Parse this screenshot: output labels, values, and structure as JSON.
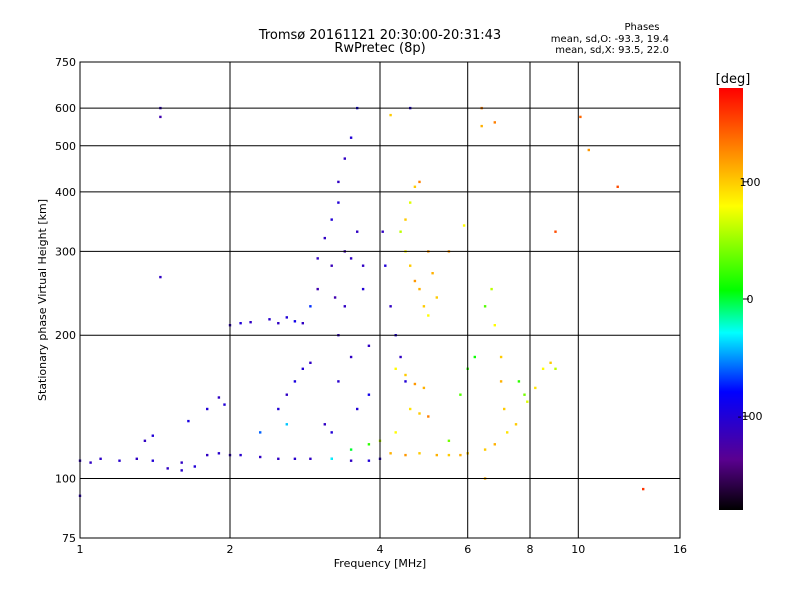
{
  "chart_data": {
    "type": "scatter",
    "title": "Tromsø 20161121 20:30:00-20:31:43",
    "subtitle": "RwPretec (8p)",
    "xlabel": "Frequency [MHz]",
    "ylabel": "Stationary phase Virtual Height [km]",
    "x_scale": "log",
    "y_scale": "log",
    "xlim": [
      1,
      16
    ],
    "ylim": [
      75,
      750
    ],
    "x_ticks": [
      1,
      2,
      4,
      6,
      8,
      10,
      16
    ],
    "x_tick_labels": [
      "1",
      "2",
      "4",
      "6",
      "8",
      "10",
      "16"
    ],
    "y_ticks": [
      75,
      100,
      200,
      300,
      400,
      500,
      600,
      750
    ],
    "y_tick_labels": [
      "75",
      "100",
      "200",
      "300",
      "400",
      "500",
      "600",
      "750"
    ],
    "grid": true,
    "stats": {
      "header": "Phases",
      "line1": "mean, sd,O: -93.3, 19.4",
      "line2": "mean, sd,X:  93.5, 22.0"
    },
    "colorbar": {
      "label": "[deg]",
      "range": [
        -180,
        180
      ],
      "ticks": [
        100,
        0,
        -100
      ],
      "tick_labels": [
        "100",
        "0",
        "-100"
      ],
      "colormap": "rainbow (black-purple-blue-cyan-green-yellow-orange-red)"
    },
    "series": [
      {
        "points": [
          [
            1.0,
            109,
            -110
          ],
          [
            1.05,
            108,
            -110
          ],
          [
            1.1,
            110,
            -108
          ],
          [
            1.2,
            109,
            -105
          ],
          [
            1.3,
            110,
            -110
          ],
          [
            1.4,
            109,
            -100
          ],
          [
            1.0,
            92,
            -110
          ],
          [
            1.45,
            575,
            -120
          ],
          [
            1.45,
            600,
            -110
          ],
          [
            1.45,
            265,
            -110
          ],
          [
            1.5,
            105,
            -110
          ],
          [
            1.6,
            104,
            -105
          ],
          [
            1.7,
            106,
            -100
          ],
          [
            1.8,
            112,
            -110
          ],
          [
            1.9,
            113,
            -105
          ],
          [
            1.6,
            108,
            -110
          ],
          [
            1.4,
            123,
            -100
          ],
          [
            1.35,
            120,
            -110
          ],
          [
            1.65,
            132,
            -95
          ],
          [
            1.8,
            140,
            -100
          ],
          [
            1.9,
            148,
            -110
          ],
          [
            1.95,
            143,
            -100
          ],
          [
            2.0,
            112,
            -110
          ],
          [
            2.1,
            112,
            -105
          ],
          [
            2.3,
            111,
            -110
          ],
          [
            2.5,
            110,
            -110
          ],
          [
            2.7,
            110,
            -105
          ],
          [
            2.9,
            110,
            -110
          ],
          [
            3.2,
            110,
            -110
          ],
          [
            3.5,
            109,
            -110
          ],
          [
            3.8,
            109,
            -100
          ],
          [
            4.0,
            110,
            -105
          ],
          [
            2.0,
            210,
            -110
          ],
          [
            2.1,
            212,
            -100
          ],
          [
            2.2,
            213,
            -110
          ],
          [
            2.4,
            216,
            -105
          ],
          [
            2.5,
            212,
            -110
          ],
          [
            2.6,
            218,
            -100
          ],
          [
            2.7,
            214,
            -90
          ],
          [
            2.8,
            212,
            -110
          ],
          [
            2.5,
            140,
            -100
          ],
          [
            2.6,
            150,
            -110
          ],
          [
            2.7,
            160,
            -95
          ],
          [
            2.8,
            170,
            -100
          ],
          [
            2.9,
            175,
            -110
          ],
          [
            3.0,
            290,
            -110
          ],
          [
            3.0,
            250,
            -120
          ],
          [
            3.1,
            320,
            -110
          ],
          [
            3.2,
            350,
            -100
          ],
          [
            3.2,
            280,
            -115
          ],
          [
            3.25,
            240,
            -120
          ],
          [
            3.3,
            420,
            -110
          ],
          [
            3.3,
            380,
            -100
          ],
          [
            3.3,
            200,
            -110
          ],
          [
            3.3,
            160,
            -105
          ],
          [
            3.4,
            470,
            -110
          ],
          [
            3.4,
            300,
            -120
          ],
          [
            3.4,
            230,
            -110
          ],
          [
            3.5,
            520,
            -100
          ],
          [
            3.5,
            290,
            -110
          ],
          [
            3.5,
            180,
            -110
          ],
          [
            3.6,
            600,
            -90
          ],
          [
            3.6,
            330,
            -110
          ],
          [
            3.6,
            140,
            -100
          ],
          [
            3.7,
            280,
            -110
          ],
          [
            3.7,
            250,
            -100
          ],
          [
            3.8,
            190,
            -110
          ],
          [
            3.8,
            150,
            -90
          ],
          [
            3.1,
            130,
            -110
          ],
          [
            3.2,
            125,
            -100
          ],
          [
            2.9,
            230,
            -70
          ],
          [
            2.3,
            125,
            -60
          ],
          [
            2.6,
            130,
            -40
          ],
          [
            4.05,
            330,
            -110
          ],
          [
            4.1,
            280,
            -100
          ],
          [
            4.2,
            230,
            -110
          ],
          [
            4.3,
            200,
            -100
          ],
          [
            4.4,
            180,
            -110
          ],
          [
            4.5,
            160,
            -100
          ]
        ]
      },
      {
        "points": [
          [
            3.2,
            110,
            -30
          ],
          [
            3.5,
            115,
            0
          ],
          [
            3.8,
            118,
            20
          ],
          [
            4.0,
            120,
            60
          ],
          [
            4.3,
            125,
            80
          ],
          [
            4.4,
            330,
            60
          ],
          [
            4.5,
            300,
            80
          ],
          [
            4.6,
            280,
            100
          ],
          [
            4.7,
            260,
            120
          ],
          [
            4.8,
            250,
            110
          ],
          [
            4.9,
            230,
            100
          ],
          [
            5.0,
            220,
            80
          ],
          [
            4.5,
            350,
            100
          ],
          [
            4.6,
            380,
            70
          ],
          [
            4.7,
            410,
            100
          ],
          [
            4.8,
            420,
            130
          ],
          [
            5.0,
            300,
            120
          ],
          [
            5.1,
            270,
            110
          ],
          [
            5.2,
            240,
            100
          ],
          [
            4.3,
            170,
            80
          ],
          [
            4.5,
            165,
            100
          ],
          [
            4.7,
            158,
            120
          ],
          [
            4.9,
            155,
            110
          ],
          [
            4.6,
            140,
            90
          ],
          [
            4.8,
            137,
            100
          ],
          [
            5.0,
            135,
            130
          ],
          [
            4.2,
            113,
            110
          ],
          [
            4.5,
            112,
            120
          ],
          [
            4.8,
            113,
            100
          ],
          [
            5.2,
            112,
            110
          ],
          [
            5.5,
            112,
            100
          ],
          [
            5.8,
            112,
            110
          ],
          [
            6.0,
            113,
            100
          ],
          [
            5.5,
            120,
            40
          ],
          [
            5.8,
            150,
            30
          ],
          [
            6.0,
            170,
            20
          ],
          [
            6.2,
            180,
            10
          ],
          [
            6.5,
            230,
            30
          ],
          [
            6.7,
            250,
            60
          ],
          [
            6.8,
            210,
            80
          ],
          [
            7.0,
            180,
            100
          ],
          [
            7.0,
            160,
            110
          ],
          [
            7.1,
            140,
            100
          ],
          [
            7.2,
            125,
            90
          ],
          [
            6.8,
            118,
            110
          ],
          [
            6.5,
            115,
            100
          ],
          [
            7.6,
            160,
            20
          ],
          [
            7.8,
            150,
            40
          ],
          [
            7.9,
            145,
            70
          ],
          [
            8.2,
            155,
            90
          ],
          [
            8.5,
            170,
            80
          ],
          [
            8.8,
            175,
            100
          ],
          [
            9.0,
            170,
            60
          ],
          [
            6.4,
            600,
            130
          ],
          [
            6.4,
            550,
            110
          ],
          [
            6.8,
            560,
            130
          ],
          [
            10.1,
            575,
            140
          ],
          [
            10.5,
            490,
            120
          ],
          [
            12.0,
            410,
            150
          ],
          [
            13.5,
            95,
            160
          ],
          [
            4.6,
            600,
            -100
          ],
          [
            4.2,
            580,
            100
          ],
          [
            5.5,
            300,
            120
          ],
          [
            5.9,
            340,
            80
          ],
          [
            9.0,
            330,
            150
          ],
          [
            6.5,
            100,
            110
          ],
          [
            7.5,
            130,
            100
          ]
        ]
      }
    ]
  }
}
